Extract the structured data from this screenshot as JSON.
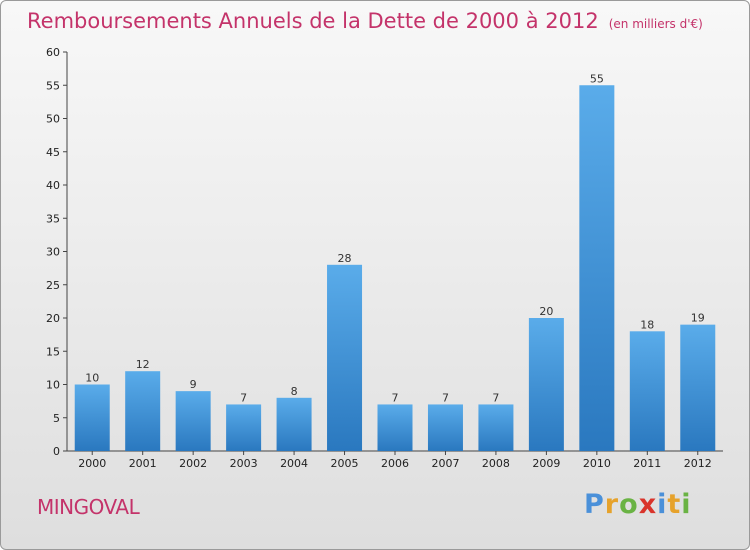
{
  "title": "Remboursements Annuels de la Dette de 2000 à 2012",
  "unit": "(en milliers d'€)",
  "commune": "MINGOVAL",
  "logo": {
    "text": "Proxiti",
    "letters": [
      {
        "ch": "P",
        "color": "#4a90d9"
      },
      {
        "ch": "r",
        "color": "#e6a22b"
      },
      {
        "ch": "o",
        "color": "#6ab344"
      },
      {
        "ch": "x",
        "color": "#d9342b"
      },
      {
        "ch": "i",
        "color": "#4a90d9"
      },
      {
        "ch": "t",
        "color": "#e6a22b"
      },
      {
        "ch": "i",
        "color": "#6ab344"
      }
    ]
  },
  "colors": {
    "accent": "#c4336a",
    "bar_top": "#5aacea",
    "bar_bottom": "#2a78bf"
  },
  "chart_data": {
    "type": "bar",
    "title": "Remboursements Annuels de la Dette de 2000 à 2012",
    "subtitle": "(en milliers d'€)",
    "categories": [
      "2000",
      "2001",
      "2002",
      "2003",
      "2004",
      "2005",
      "2006",
      "2007",
      "2008",
      "2009",
      "2010",
      "2011",
      "2012"
    ],
    "values": [
      10,
      12,
      9,
      7,
      8,
      28,
      7,
      7,
      7,
      20,
      55,
      18,
      19
    ],
    "xlabel": "",
    "ylabel": "",
    "ylim": [
      0,
      60
    ],
    "yticks": [
      0,
      5,
      10,
      15,
      20,
      25,
      30,
      35,
      40,
      45,
      50,
      55,
      60
    ],
    "grid": false,
    "legend": "none"
  }
}
